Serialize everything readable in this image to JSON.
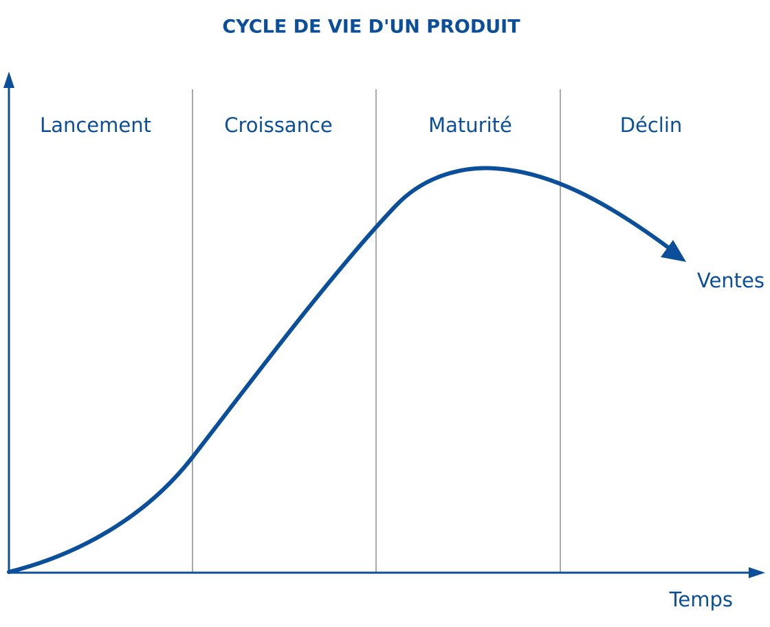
{
  "title": "CYCLE DE VIE D'UN PRODUIT",
  "stages": [
    "Lancement",
    "Croissance",
    "Maturité",
    "Déclin"
  ],
  "curve_label": "Ventes",
  "x_axis_label": "Temps"
}
